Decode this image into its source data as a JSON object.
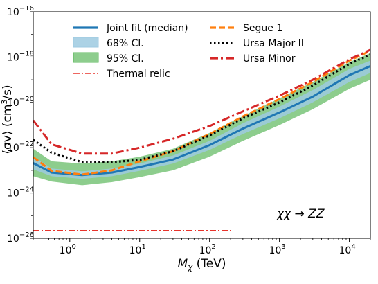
{
  "chart_data": {
    "type": "line",
    "xlabel": "M_χ (TeV)",
    "ylabel": "⟨σv⟩ (cm³/s)",
    "xscale": "log",
    "yscale": "log",
    "xlim": [
      0.3,
      20000
    ],
    "ylim": [
      1e-26,
      1e-16
    ],
    "x_ticks": [
      {
        "v": 1,
        "base": "10",
        "exp": "0"
      },
      {
        "v": 10,
        "base": "10",
        "exp": "1"
      },
      {
        "v": 100,
        "base": "10",
        "exp": "2"
      },
      {
        "v": 1000,
        "base": "10",
        "exp": "3"
      },
      {
        "v": 10000,
        "base": "10",
        "exp": "4"
      }
    ],
    "y_ticks": [
      {
        "v": 1e-26,
        "base": "10",
        "exp": "−26"
      },
      {
        "v": 1e-24,
        "base": "10",
        "exp": "−24"
      },
      {
        "v": 1e-22,
        "base": "10",
        "exp": "−22"
      },
      {
        "v": 1e-20,
        "base": "10",
        "exp": "−20"
      },
      {
        "v": 1e-18,
        "base": "10",
        "exp": "−18"
      },
      {
        "v": 1e-16,
        "base": "10",
        "exp": "−16"
      }
    ],
    "x": [
      0.3,
      0.55,
      1.5,
      4,
      10,
      30,
      100,
      300,
      1000,
      3000,
      10000,
      20000
    ],
    "bands": [
      {
        "name": "95% Cl.",
        "color": "#5cb85c",
        "lower": [
          5.5e-24,
          3.2e-24,
          2.2e-24,
          3e-24,
          5e-24,
          1e-23,
          4e-23,
          2e-22,
          1e-21,
          5e-21,
          4e-20,
          1e-19
        ],
        "upper": [
          9e-23,
          2.5e-23,
          2e-23,
          2.5e-23,
          4e-23,
          9e-23,
          4.5e-22,
          2.5e-21,
          1.5e-20,
          8e-20,
          6e-19,
          1.5e-18
        ]
      },
      {
        "name": "68% Cl.",
        "color": "#9ecae1",
        "lower": [
          1.1e-23,
          5.5e-24,
          4.2e-24,
          5.5e-24,
          9.5e-24,
          2e-23,
          8e-23,
          4e-22,
          2e-21,
          1e-20,
          8e-20,
          2e-19
        ],
        "upper": [
          4.2e-23,
          1.2e-23,
          9e-24,
          1.2e-23,
          2e-23,
          4.5e-23,
          2e-22,
          1.2e-21,
          6.5e-21,
          3.5e-20,
          3e-19,
          7e-19
        ]
      }
    ],
    "series": [
      {
        "name": "Joint fit (median)",
        "color": "#1f77b4",
        "style": "solid",
        "values": [
          2.1e-23,
          8e-24,
          6.2e-24,
          8e-24,
          1.4e-23,
          3e-23,
          1.3e-22,
          7e-22,
          3.6e-21,
          1.8e-20,
          1.6e-19,
          4e-19
        ]
      },
      {
        "name": "Segue 1",
        "color": "#ff7f0e",
        "style": "dashed",
        "values": [
          3.8e-23,
          9.5e-24,
          6.5e-24,
          1e-23,
          2.5e-23,
          7e-23,
          4e-22,
          2.4e-21,
          1.4e-20,
          8e-20,
          7e-19,
          1.9e-18
        ]
      },
      {
        "name": "Ursa Major II",
        "color": "#000000",
        "style": "dotted",
        "values": [
          2.2e-22,
          6e-23,
          2.3e-23,
          2.3e-23,
          2.9e-23,
          7e-23,
          3.5e-22,
          2e-21,
          1e-20,
          5.5e-20,
          5e-19,
          1.3e-18
        ]
      },
      {
        "name": "Ursa Minor",
        "color": "#d62728",
        "style": "dashdot",
        "values": [
          1.6e-21,
          1.4e-22,
          5.5e-23,
          5.5e-23,
          1e-22,
          2.5e-22,
          9e-22,
          4e-21,
          2e-20,
          1e-19,
          8e-19,
          2.1e-18
        ]
      }
    ],
    "thermal_relic": {
      "name": "Thermal relic",
      "color": "#e8332b",
      "style": "dashdot",
      "x": [
        0.3,
        200
      ],
      "value": 2.2e-26
    },
    "legend": {
      "placement": "top",
      "left_column": [
        "Joint fit (median)",
        "68% Cl.",
        "95% Cl.",
        "Thermal relic"
      ],
      "right_column": [
        "Segue 1",
        "Ursa Major II",
        "Ursa Minor"
      ]
    },
    "annotation": "χχ → ZZ",
    "grid": false
  }
}
